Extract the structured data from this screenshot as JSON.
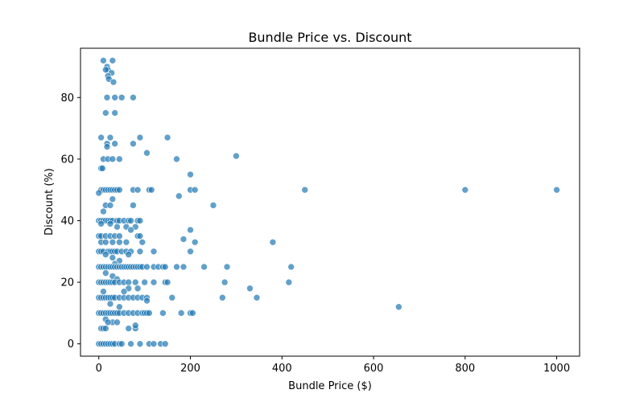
{
  "chart_data": {
    "type": "scatter",
    "title": "Bundle Price vs. Discount",
    "xlabel": "Bundle Price ($)",
    "ylabel": "Discount (%)",
    "xlim": [
      -40,
      1050
    ],
    "ylim": [
      -4,
      96
    ],
    "xticks": [
      0,
      200,
      400,
      600,
      800,
      1000
    ],
    "yticks": [
      0,
      20,
      40,
      60,
      80
    ],
    "grid": false,
    "point_color": "#1f77b4",
    "point_opacity": 0.7,
    "points": [
      [
        10,
        92
      ],
      [
        30,
        92
      ],
      [
        18,
        90
      ],
      [
        20,
        89
      ],
      [
        15,
        89
      ],
      [
        28,
        88
      ],
      [
        20,
        87
      ],
      [
        22,
        86
      ],
      [
        32,
        85
      ],
      [
        18,
        80
      ],
      [
        35,
        80
      ],
      [
        50,
        80
      ],
      [
        75,
        80
      ],
      [
        15,
        75
      ],
      [
        35,
        75
      ],
      [
        5,
        67
      ],
      [
        25,
        67
      ],
      [
        90,
        67
      ],
      [
        150,
        67
      ],
      [
        18,
        65
      ],
      [
        35,
        65
      ],
      [
        75,
        65
      ],
      [
        18,
        64
      ],
      [
        10,
        60
      ],
      [
        20,
        60
      ],
      [
        30,
        60
      ],
      [
        45,
        60
      ],
      [
        170,
        60
      ],
      [
        300,
        61
      ],
      [
        105,
        62
      ],
      [
        5,
        57
      ],
      [
        8,
        57
      ],
      [
        200,
        55
      ],
      [
        5,
        50
      ],
      [
        10,
        50
      ],
      [
        15,
        50
      ],
      [
        20,
        50
      ],
      [
        25,
        50
      ],
      [
        30,
        50
      ],
      [
        35,
        50
      ],
      [
        40,
        50
      ],
      [
        45,
        50
      ],
      [
        75,
        50
      ],
      [
        85,
        50
      ],
      [
        110,
        50
      ],
      [
        115,
        50
      ],
      [
        200,
        50
      ],
      [
        210,
        50
      ],
      [
        450,
        50
      ],
      [
        800,
        50
      ],
      [
        1000,
        50
      ],
      [
        0,
        49
      ],
      [
        175,
        48
      ],
      [
        30,
        47
      ],
      [
        15,
        45
      ],
      [
        25,
        45
      ],
      [
        75,
        45
      ],
      [
        250,
        45
      ],
      [
        10,
        43
      ],
      [
        0,
        40
      ],
      [
        5,
        40
      ],
      [
        10,
        40
      ],
      [
        15,
        40
      ],
      [
        20,
        40
      ],
      [
        25,
        40
      ],
      [
        30,
        40
      ],
      [
        40,
        40
      ],
      [
        45,
        40
      ],
      [
        55,
        40
      ],
      [
        65,
        40
      ],
      [
        70,
        40
      ],
      [
        85,
        40
      ],
      [
        90,
        40
      ],
      [
        5,
        39
      ],
      [
        25,
        39
      ],
      [
        60,
        38
      ],
      [
        80,
        38
      ],
      [
        40,
        38
      ],
      [
        70,
        37
      ],
      [
        200,
        37
      ],
      [
        0,
        35
      ],
      [
        5,
        35
      ],
      [
        15,
        35
      ],
      [
        25,
        35
      ],
      [
        35,
        35
      ],
      [
        45,
        35
      ],
      [
        85,
        35
      ],
      [
        90,
        35
      ],
      [
        185,
        34
      ],
      [
        5,
        33
      ],
      [
        15,
        33
      ],
      [
        30,
        33
      ],
      [
        45,
        33
      ],
      [
        60,
        33
      ],
      [
        95,
        33
      ],
      [
        210,
        33
      ],
      [
        380,
        33
      ],
      [
        0,
        30
      ],
      [
        5,
        30
      ],
      [
        10,
        30
      ],
      [
        20,
        30
      ],
      [
        25,
        30
      ],
      [
        30,
        30
      ],
      [
        35,
        30
      ],
      [
        40,
        30
      ],
      [
        50,
        30
      ],
      [
        60,
        30
      ],
      [
        70,
        30
      ],
      [
        90,
        30
      ],
      [
        120,
        30
      ],
      [
        200,
        30
      ],
      [
        15,
        29
      ],
      [
        65,
        29
      ],
      [
        30,
        28
      ],
      [
        45,
        27
      ],
      [
        35,
        26
      ],
      [
        0,
        25
      ],
      [
        5,
        25
      ],
      [
        10,
        25
      ],
      [
        15,
        25
      ],
      [
        20,
        25
      ],
      [
        25,
        25
      ],
      [
        30,
        25
      ],
      [
        35,
        25
      ],
      [
        40,
        25
      ],
      [
        45,
        25
      ],
      [
        50,
        25
      ],
      [
        55,
        25
      ],
      [
        60,
        25
      ],
      [
        65,
        25
      ],
      [
        70,
        25
      ],
      [
        75,
        25
      ],
      [
        80,
        25
      ],
      [
        85,
        25
      ],
      [
        90,
        25
      ],
      [
        95,
        25
      ],
      [
        105,
        25
      ],
      [
        120,
        25
      ],
      [
        130,
        25
      ],
      [
        140,
        25
      ],
      [
        145,
        25
      ],
      [
        170,
        25
      ],
      [
        185,
        25
      ],
      [
        230,
        25
      ],
      [
        280,
        25
      ],
      [
        420,
        25
      ],
      [
        15,
        23
      ],
      [
        30,
        22
      ],
      [
        40,
        21
      ],
      [
        0,
        20
      ],
      [
        5,
        20
      ],
      [
        10,
        20
      ],
      [
        15,
        20
      ],
      [
        20,
        20
      ],
      [
        25,
        20
      ],
      [
        30,
        20
      ],
      [
        35,
        20
      ],
      [
        45,
        20
      ],
      [
        55,
        20
      ],
      [
        65,
        20
      ],
      [
        80,
        20
      ],
      [
        100,
        20
      ],
      [
        120,
        20
      ],
      [
        145,
        20
      ],
      [
        150,
        20
      ],
      [
        275,
        20
      ],
      [
        415,
        20
      ],
      [
        65,
        18
      ],
      [
        85,
        18
      ],
      [
        330,
        18
      ],
      [
        10,
        17
      ],
      [
        55,
        17
      ],
      [
        0,
        15
      ],
      [
        5,
        15
      ],
      [
        10,
        15
      ],
      [
        15,
        15
      ],
      [
        20,
        15
      ],
      [
        25,
        15
      ],
      [
        30,
        15
      ],
      [
        35,
        15
      ],
      [
        45,
        15
      ],
      [
        55,
        15
      ],
      [
        65,
        15
      ],
      [
        75,
        15
      ],
      [
        85,
        15
      ],
      [
        95,
        15
      ],
      [
        105,
        15
      ],
      [
        160,
        15
      ],
      [
        270,
        15
      ],
      [
        345,
        15
      ],
      [
        25,
        13
      ],
      [
        105,
        14
      ],
      [
        45,
        12
      ],
      [
        655,
        12
      ],
      [
        0,
        10
      ],
      [
        5,
        10
      ],
      [
        10,
        10
      ],
      [
        15,
        10
      ],
      [
        20,
        10
      ],
      [
        25,
        10
      ],
      [
        30,
        10
      ],
      [
        35,
        10
      ],
      [
        40,
        10
      ],
      [
        45,
        10
      ],
      [
        55,
        10
      ],
      [
        65,
        10
      ],
      [
        75,
        10
      ],
      [
        85,
        10
      ],
      [
        95,
        10
      ],
      [
        100,
        10
      ],
      [
        105,
        10
      ],
      [
        110,
        10
      ],
      [
        140,
        10
      ],
      [
        180,
        10
      ],
      [
        200,
        10
      ],
      [
        205,
        10
      ],
      [
        15,
        8
      ],
      [
        30,
        7
      ],
      [
        40,
        7
      ],
      [
        20,
        7
      ],
      [
        5,
        5
      ],
      [
        10,
        5
      ],
      [
        15,
        5
      ],
      [
        65,
        5
      ],
      [
        80,
        5
      ],
      [
        80,
        6
      ],
      [
        0,
        0
      ],
      [
        5,
        0
      ],
      [
        10,
        0
      ],
      [
        15,
        0
      ],
      [
        20,
        0
      ],
      [
        25,
        0
      ],
      [
        30,
        0
      ],
      [
        35,
        0
      ],
      [
        45,
        0
      ],
      [
        50,
        0
      ],
      [
        70,
        0
      ],
      [
        90,
        0
      ],
      [
        110,
        0
      ],
      [
        120,
        0
      ],
      [
        135,
        0
      ],
      [
        145,
        0
      ]
    ]
  }
}
